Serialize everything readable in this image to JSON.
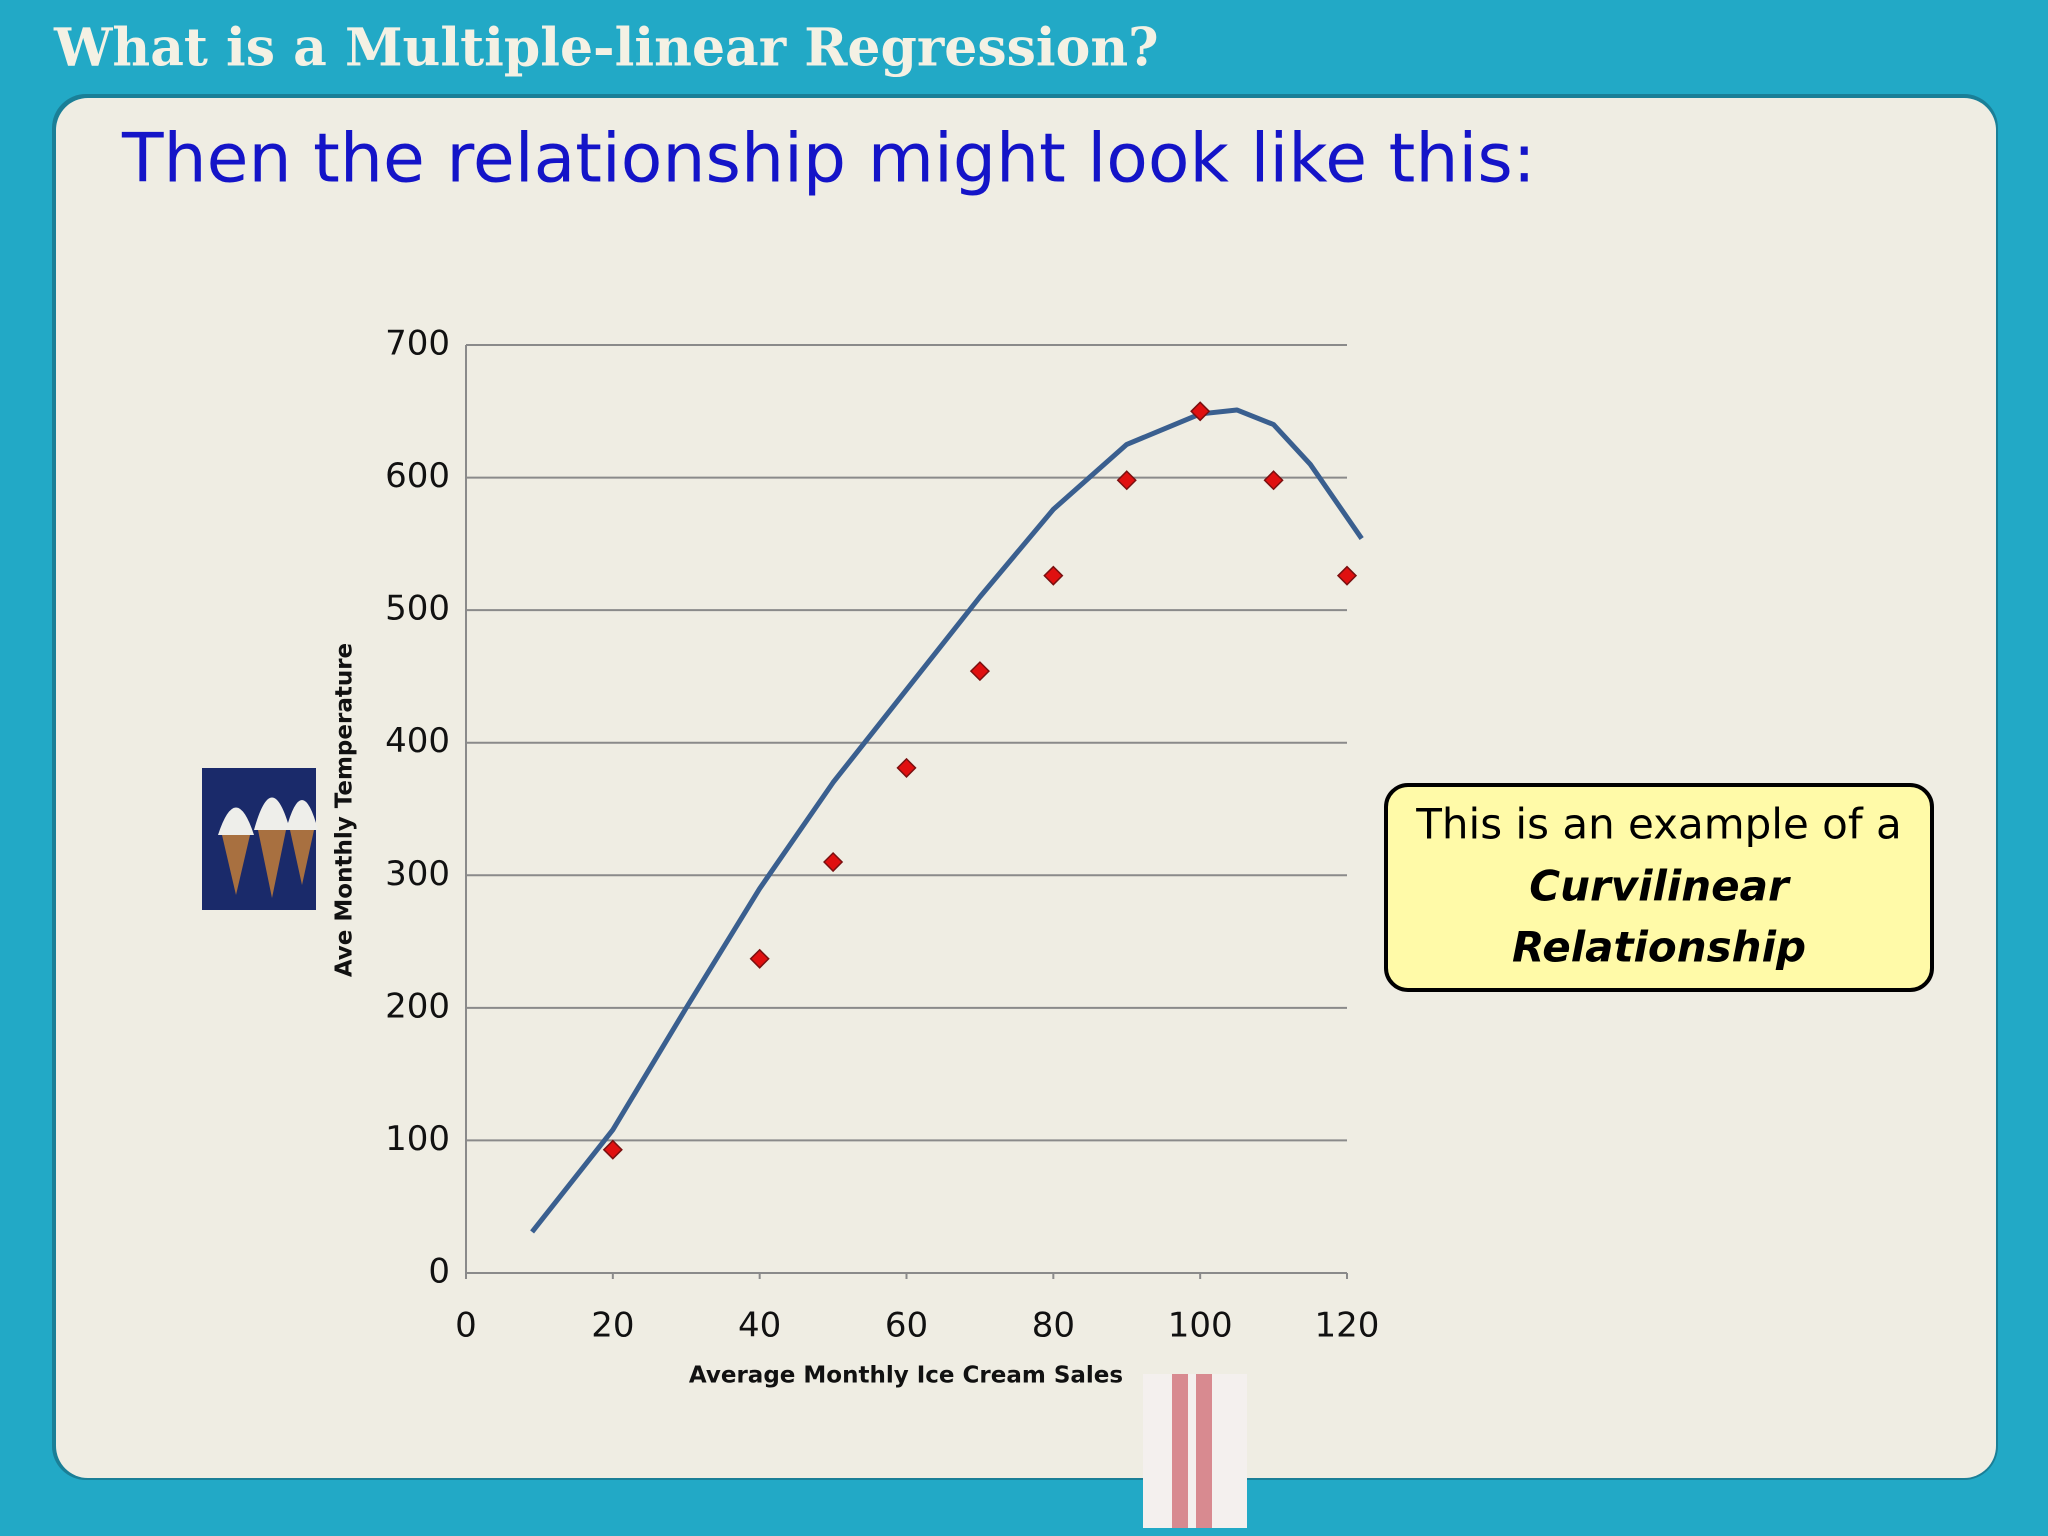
{
  "header": {
    "title": "What is a Multiple-linear Regression?",
    "subtitle": "Then the relationship might look like this:"
  },
  "chart_data": {
    "type": "scatter",
    "x_label": "Average Monthly Ice Cream Sales",
    "y_label": "Ave Monthly Temperature",
    "points": {
      "color": "#e01010",
      "x": [
        20,
        40,
        50,
        60,
        70,
        80,
        90,
        100,
        110,
        120
      ],
      "values": [
        93,
        237,
        310,
        381,
        454,
        526,
        598,
        650,
        598,
        526
      ]
    },
    "trendline": {
      "color": "#3a5f8f",
      "x": [
        9,
        20,
        30,
        40,
        50,
        60,
        70,
        80,
        90,
        100,
        105,
        110,
        115,
        122
      ],
      "values": [
        31,
        108,
        200,
        290,
        370,
        440,
        510,
        576,
        625,
        648,
        651,
        640,
        610,
        554
      ]
    },
    "xlim": [
      0,
      120
    ],
    "xticks": [
      0,
      20,
      40,
      60,
      80,
      100,
      120
    ],
    "ylim": [
      0,
      700
    ],
    "yticks": [
      0,
      100,
      200,
      300,
      400,
      500,
      600,
      700
    ],
    "grid": true,
    "annotation": [
      "This is an example of a",
      "Curvilinear",
      "Relationship"
    ]
  }
}
